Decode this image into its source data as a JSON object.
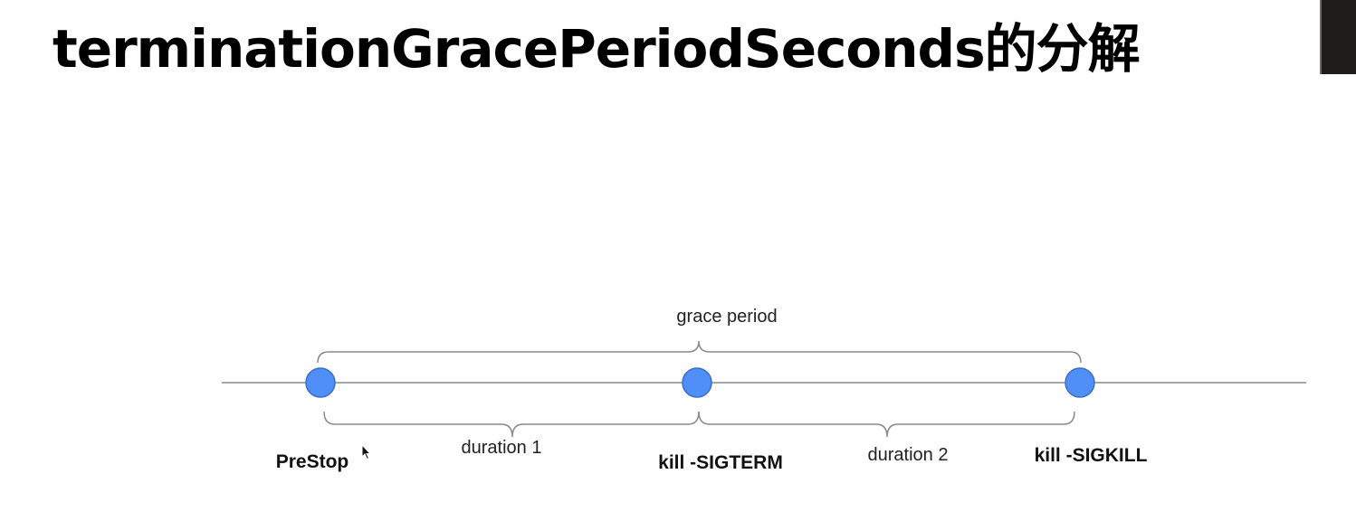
{
  "title": "terminationGracePeriodSeconds的分解",
  "diagram": {
    "span_labels": {
      "grace_period": "grace period",
      "duration_1": "duration 1",
      "duration_2": "duration 2"
    },
    "events": [
      {
        "label": "PreStop"
      },
      {
        "label": "kill -SIGTERM"
      },
      {
        "label": "kill -SIGKILL"
      }
    ],
    "colors": {
      "node_fill": "#4f8ff7",
      "node_stroke": "#3b6fc4",
      "line": "#8a8a8a",
      "brace": "#8a8a8a"
    }
  }
}
